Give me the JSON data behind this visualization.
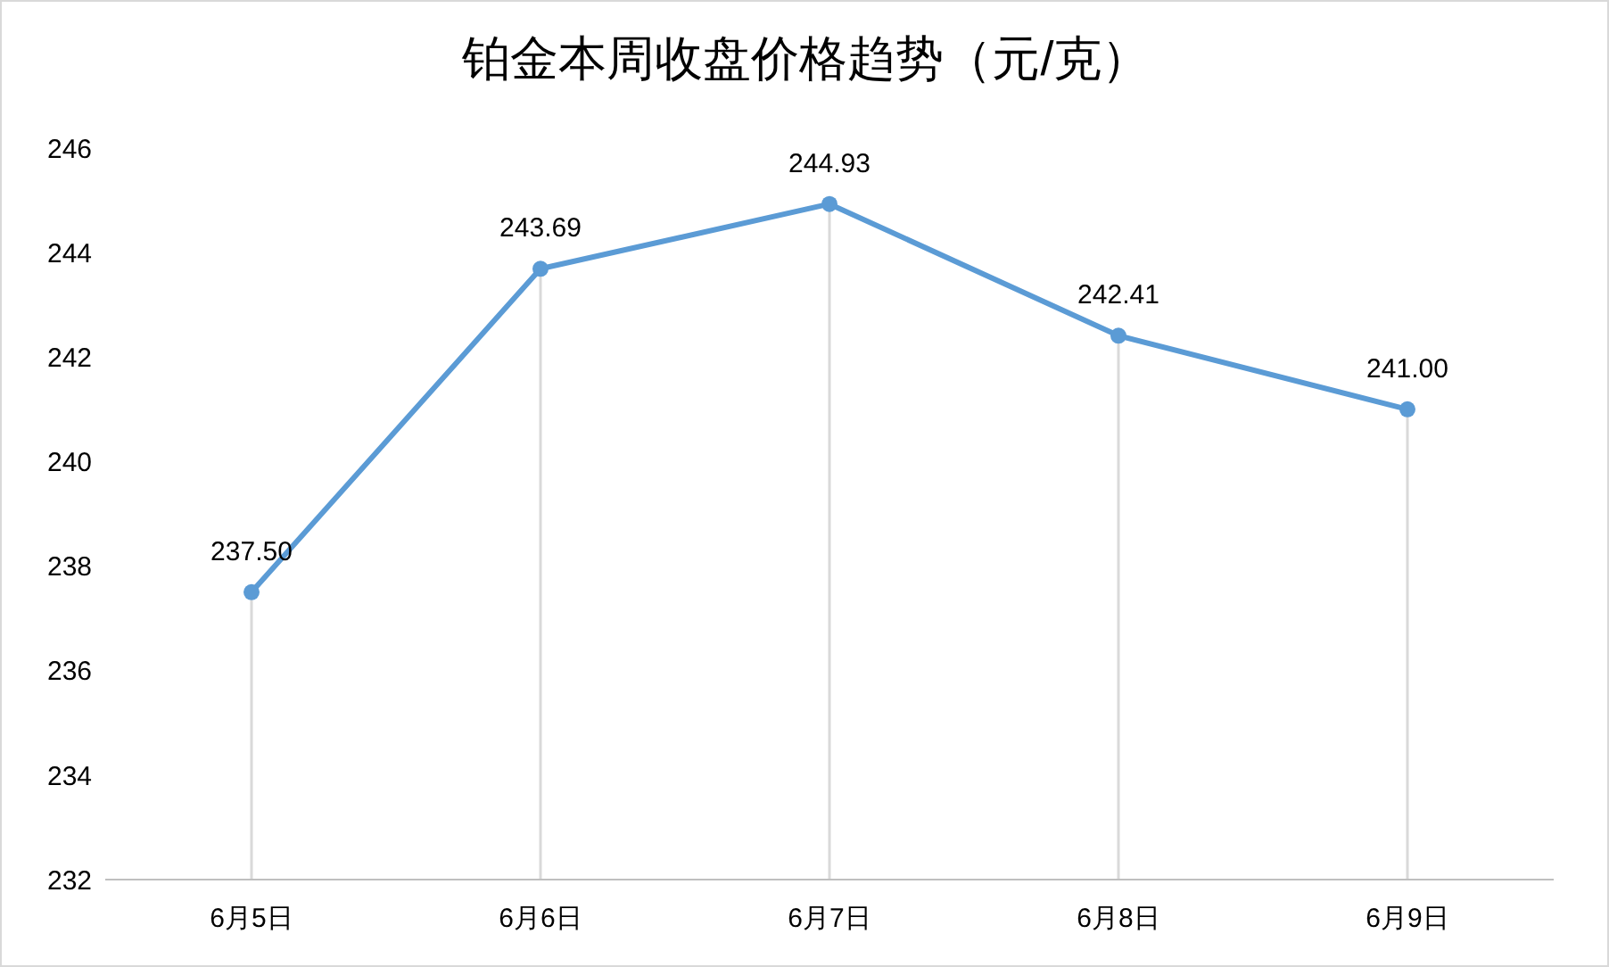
{
  "chart_data": {
    "type": "line",
    "title": "铂金本周收盘价格趋势（元/克）",
    "categories": [
      "6月5日",
      "6月6日",
      "6月7日",
      "6月8日",
      "6月9日"
    ],
    "series": [
      {
        "color": "#5b9bd5",
        "values": [
          237.5,
          243.69,
          244.93,
          242.41,
          241.0
        ],
        "value_labels": [
          "237.50",
          "243.69",
          "244.93",
          "242.41",
          "241.00"
        ]
      }
    ],
    "ylim": [
      232,
      246
    ],
    "yticks": [
      232,
      234,
      236,
      238,
      240,
      242,
      244,
      246
    ],
    "grid": false,
    "legend": false,
    "marker": "circle",
    "line_style": "solid",
    "ref_lines": [
      {
        "axis": "x",
        "value": "6月5日",
        "color": "#d9d9d9"
      },
      {
        "axis": "x",
        "value": "6月6日",
        "color": "#d9d9d9"
      },
      {
        "axis": "x",
        "value": "6月7日",
        "color": "#d9d9d9"
      },
      {
        "axis": "x",
        "value": "6月8日",
        "color": "#d9d9d9"
      },
      {
        "axis": "x",
        "value": "6月9日",
        "color": "#d9d9d9"
      }
    ]
  }
}
